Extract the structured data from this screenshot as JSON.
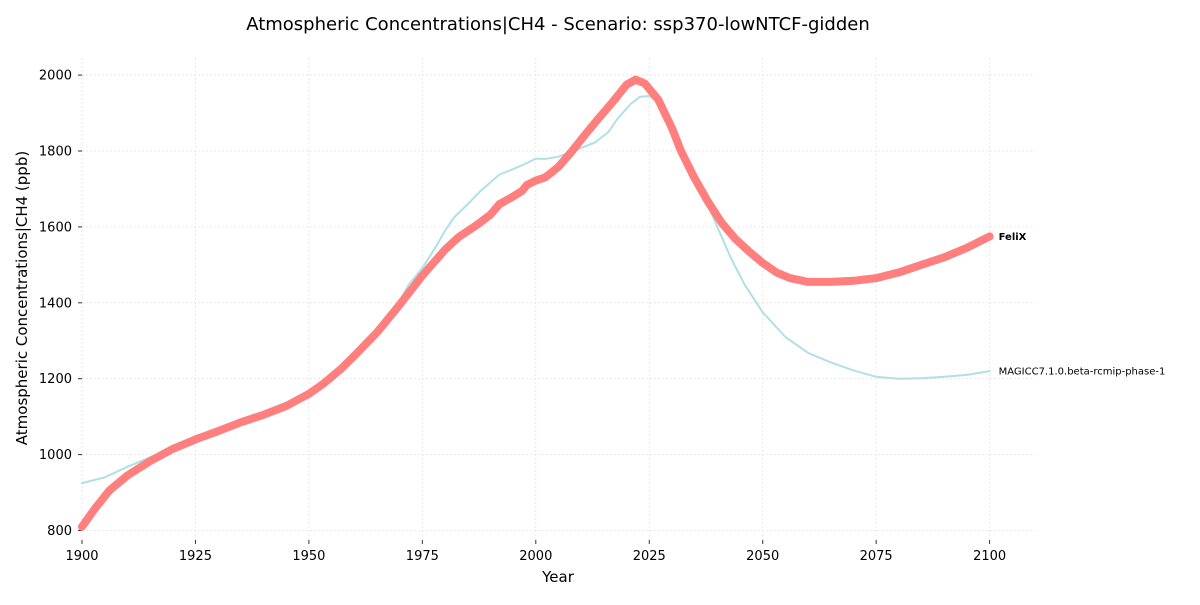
{
  "chart_data": {
    "type": "line",
    "title": "Atmospheric Concentrations|CH4 - Scenario: ssp370-lowNTCF-gidden",
    "xlabel": "Year",
    "ylabel": "Atmospheric Concentrations|CH4 (ppb)",
    "xlim": [
      1900,
      2110
    ],
    "ylim": [
      775,
      2045
    ],
    "x_ticks": [
      1900,
      1925,
      1950,
      1975,
      2000,
      2025,
      2050,
      2075,
      2100
    ],
    "y_ticks": [
      800,
      1000,
      1200,
      1400,
      1600,
      1800,
      2000
    ],
    "grid": true,
    "legend": "none (series labelled at line ends)",
    "series": [
      {
        "name": "MAGICC7.1.0.beta-rcmip-phase-1",
        "color": "#b0e0e6",
        "label_bold": false,
        "points": [
          [
            1900,
            925
          ],
          [
            1905,
            940
          ],
          [
            1910,
            968
          ],
          [
            1915,
            993
          ],
          [
            1920,
            1018
          ],
          [
            1925,
            1045
          ],
          [
            1930,
            1065
          ],
          [
            1935,
            1088
          ],
          [
            1940,
            1113
          ],
          [
            1945,
            1137
          ],
          [
            1950,
            1163
          ],
          [
            1955,
            1200
          ],
          [
            1960,
            1258
          ],
          [
            1965,
            1328
          ],
          [
            1970,
            1405
          ],
          [
            1972,
            1448
          ],
          [
            1975,
            1492
          ],
          [
            1978,
            1548
          ],
          [
            1980,
            1590
          ],
          [
            1982,
            1625
          ],
          [
            1985,
            1660
          ],
          [
            1988,
            1697
          ],
          [
            1992,
            1738
          ],
          [
            1995,
            1752
          ],
          [
            1998,
            1768
          ],
          [
            2000,
            1780
          ],
          [
            2002,
            1779
          ],
          [
            2005,
            1785
          ],
          [
            2010,
            1808
          ],
          [
            2013,
            1822
          ],
          [
            2016,
            1850
          ],
          [
            2018,
            1885
          ],
          [
            2021,
            1925
          ],
          [
            2023,
            1943
          ],
          [
            2025,
            1945
          ],
          [
            2027,
            1928
          ],
          [
            2030,
            1870
          ],
          [
            2033,
            1790
          ],
          [
            2036,
            1710
          ],
          [
            2040,
            1600
          ],
          [
            2043,
            1518
          ],
          [
            2046,
            1448
          ],
          [
            2050,
            1375
          ],
          [
            2055,
            1310
          ],
          [
            2060,
            1268
          ],
          [
            2065,
            1243
          ],
          [
            2070,
            1222
          ],
          [
            2075,
            1205
          ],
          [
            2080,
            1200
          ],
          [
            2085,
            1201
          ],
          [
            2090,
            1205
          ],
          [
            2095,
            1210
          ],
          [
            2100,
            1220
          ]
        ]
      },
      {
        "name": "FeliX",
        "color": "#ff7f7f",
        "label_bold": true,
        "points": [
          [
            1900,
            810
          ],
          [
            1903,
            860
          ],
          [
            1906,
            905
          ],
          [
            1910,
            945
          ],
          [
            1915,
            983
          ],
          [
            1920,
            1015
          ],
          [
            1925,
            1040
          ],
          [
            1930,
            1062
          ],
          [
            1935,
            1085
          ],
          [
            1940,
            1105
          ],
          [
            1945,
            1128
          ],
          [
            1950,
            1160
          ],
          [
            1953,
            1185
          ],
          [
            1957,
            1225
          ],
          [
            1960,
            1260
          ],
          [
            1965,
            1322
          ],
          [
            1970,
            1395
          ],
          [
            1975,
            1472
          ],
          [
            1980,
            1540
          ],
          [
            1983,
            1573
          ],
          [
            1987,
            1605
          ],
          [
            1990,
            1632
          ],
          [
            1992,
            1660
          ],
          [
            1995,
            1680
          ],
          [
            1997,
            1695
          ],
          [
            1998,
            1710
          ],
          [
            2000,
            1722
          ],
          [
            2002,
            1730
          ],
          [
            2005,
            1758
          ],
          [
            2008,
            1800
          ],
          [
            2011,
            1845
          ],
          [
            2014,
            1888
          ],
          [
            2017,
            1930
          ],
          [
            2020,
            1975
          ],
          [
            2022,
            1988
          ],
          [
            2024,
            1978
          ],
          [
            2027,
            1935
          ],
          [
            2030,
            1860
          ],
          [
            2032,
            1800
          ],
          [
            2035,
            1728
          ],
          [
            2038,
            1665
          ],
          [
            2041,
            1610
          ],
          [
            2044,
            1568
          ],
          [
            2047,
            1535
          ],
          [
            2050,
            1505
          ],
          [
            2053,
            1480
          ],
          [
            2056,
            1465
          ],
          [
            2060,
            1455
          ],
          [
            2065,
            1455
          ],
          [
            2070,
            1458
          ],
          [
            2075,
            1465
          ],
          [
            2080,
            1480
          ],
          [
            2085,
            1500
          ],
          [
            2090,
            1520
          ],
          [
            2095,
            1545
          ],
          [
            2100,
            1575
          ]
        ]
      }
    ]
  }
}
